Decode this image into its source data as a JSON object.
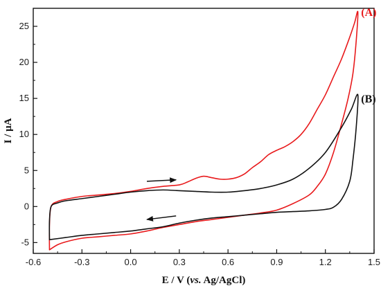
{
  "chart_data": {
    "type": "line",
    "title": "",
    "xlabel": {
      "prefix": "E / V (",
      "italic": "vs.",
      "suffix": " Ag/AgCl)"
    },
    "ylabel": "I / μA",
    "xlim": [
      -0.6,
      1.5
    ],
    "ylim": [
      -6.5,
      27.5
    ],
    "x_ticks": [
      -0.6,
      -0.3,
      0.0,
      0.3,
      0.6,
      0.9,
      1.2,
      1.5
    ],
    "x_tick_labels": [
      "-0.6",
      "-0.3",
      "0.0",
      "0.3",
      "0.6",
      "0.9",
      "1.2",
      "1.5"
    ],
    "y_ticks": [
      -5,
      0,
      5,
      10,
      15,
      20,
      25
    ],
    "y_tick_labels": [
      "-5",
      "0",
      "5",
      "10",
      "15",
      "20",
      "25"
    ],
    "grid": false,
    "legend": "none",
    "series": [
      {
        "name": "(A)",
        "color": "#e8191b",
        "points": [
          [
            -0.5,
            -6.0
          ],
          [
            -0.5,
            -2.5
          ],
          [
            -0.49,
            0.0
          ],
          [
            -0.45,
            0.7
          ],
          [
            -0.4,
            1.0
          ],
          [
            -0.3,
            1.4
          ],
          [
            -0.2,
            1.6
          ],
          [
            -0.1,
            1.8
          ],
          [
            0.0,
            2.1
          ],
          [
            0.1,
            2.5
          ],
          [
            0.2,
            2.8
          ],
          [
            0.3,
            3.0
          ],
          [
            0.35,
            3.4
          ],
          [
            0.4,
            3.9
          ],
          [
            0.45,
            4.2
          ],
          [
            0.5,
            4.0
          ],
          [
            0.55,
            3.8
          ],
          [
            0.6,
            3.8
          ],
          [
            0.65,
            4.0
          ],
          [
            0.7,
            4.5
          ],
          [
            0.75,
            5.4
          ],
          [
            0.8,
            6.2
          ],
          [
            0.85,
            7.2
          ],
          [
            0.9,
            7.8
          ],
          [
            0.95,
            8.3
          ],
          [
            1.0,
            9.0
          ],
          [
            1.05,
            10.0
          ],
          [
            1.1,
            11.5
          ],
          [
            1.15,
            13.5
          ],
          [
            1.2,
            15.5
          ],
          [
            1.25,
            18.0
          ],
          [
            1.3,
            20.5
          ],
          [
            1.35,
            23.5
          ],
          [
            1.38,
            25.5
          ],
          [
            1.4,
            27.0
          ],
          [
            1.39,
            23.0
          ],
          [
            1.37,
            18.5
          ],
          [
            1.34,
            15.0
          ],
          [
            1.3,
            11.5
          ],
          [
            1.25,
            7.5
          ],
          [
            1.2,
            4.5
          ],
          [
            1.15,
            2.8
          ],
          [
            1.1,
            1.6
          ],
          [
            1.0,
            0.4
          ],
          [
            0.9,
            -0.5
          ],
          [
            0.8,
            -0.9
          ],
          [
            0.7,
            -1.2
          ],
          [
            0.6,
            -1.5
          ],
          [
            0.5,
            -1.8
          ],
          [
            0.4,
            -2.1
          ],
          [
            0.3,
            -2.5
          ],
          [
            0.2,
            -2.9
          ],
          [
            0.1,
            -3.4
          ],
          [
            0.0,
            -3.8
          ],
          [
            -0.1,
            -4.0
          ],
          [
            -0.2,
            -4.2
          ],
          [
            -0.3,
            -4.4
          ],
          [
            -0.4,
            -4.9
          ],
          [
            -0.45,
            -5.3
          ],
          [
            -0.5,
            -6.0
          ]
        ]
      },
      {
        "name": "(B)",
        "color": "#111111",
        "points": [
          [
            -0.5,
            -4.6
          ],
          [
            -0.5,
            -2.0
          ],
          [
            -0.49,
            0.0
          ],
          [
            -0.45,
            0.5
          ],
          [
            -0.4,
            0.8
          ],
          [
            -0.3,
            1.1
          ],
          [
            -0.2,
            1.4
          ],
          [
            -0.1,
            1.7
          ],
          [
            0.0,
            2.0
          ],
          [
            0.1,
            2.2
          ],
          [
            0.2,
            2.3
          ],
          [
            0.3,
            2.2
          ],
          [
            0.4,
            2.1
          ],
          [
            0.5,
            2.0
          ],
          [
            0.6,
            2.0
          ],
          [
            0.7,
            2.2
          ],
          [
            0.8,
            2.5
          ],
          [
            0.9,
            3.0
          ],
          [
            1.0,
            3.8
          ],
          [
            1.1,
            5.3
          ],
          [
            1.2,
            7.5
          ],
          [
            1.3,
            11.0
          ],
          [
            1.36,
            13.5
          ],
          [
            1.4,
            15.5
          ],
          [
            1.39,
            11.0
          ],
          [
            1.37,
            6.5
          ],
          [
            1.35,
            3.5
          ],
          [
            1.3,
            1.0
          ],
          [
            1.25,
            -0.1
          ],
          [
            1.2,
            -0.4
          ],
          [
            1.1,
            -0.6
          ],
          [
            1.0,
            -0.7
          ],
          [
            0.9,
            -0.8
          ],
          [
            0.8,
            -1.0
          ],
          [
            0.7,
            -1.2
          ],
          [
            0.6,
            -1.4
          ],
          [
            0.5,
            -1.6
          ],
          [
            0.4,
            -1.9
          ],
          [
            0.3,
            -2.3
          ],
          [
            0.2,
            -2.8
          ],
          [
            0.1,
            -3.1
          ],
          [
            0.0,
            -3.4
          ],
          [
            -0.1,
            -3.6
          ],
          [
            -0.2,
            -3.8
          ],
          [
            -0.3,
            -4.0
          ],
          [
            -0.4,
            -4.3
          ],
          [
            -0.5,
            -4.6
          ]
        ]
      }
    ],
    "series_labels": [
      {
        "text": "(A)",
        "color": "#e8191b",
        "x": 1.42,
        "y": 27.0
      },
      {
        "text": "(B)",
        "color": "#111111",
        "x": 1.42,
        "y": 15.0
      }
    ],
    "annotations": [
      {
        "type": "arrow",
        "direction": "right",
        "from": [
          0.1,
          3.5
        ],
        "to": [
          0.28,
          3.7
        ]
      },
      {
        "type": "arrow",
        "direction": "left",
        "from": [
          0.28,
          -1.3
        ],
        "to": [
          0.1,
          -1.8
        ]
      }
    ]
  }
}
